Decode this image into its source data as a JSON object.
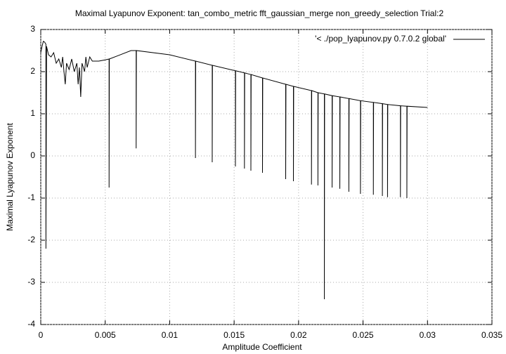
{
  "chart_data": {
    "type": "line",
    "title": "Maximal Lyapunov Exponent: tan_combo_metric fft_gaussian_merge non_greedy_selection Trial:2",
    "xlabel": "Amplitude Coefficient",
    "ylabel": "Maximal Lyapunov Exponent",
    "xlim": [
      0,
      0.035
    ],
    "ylim": [
      -4,
      3
    ],
    "xticks": [
      0,
      0.005,
      0.01,
      0.015,
      0.02,
      0.025,
      0.03,
      0.035
    ],
    "yticks": [
      -4,
      -3,
      -2,
      -1,
      0,
      1,
      2,
      3
    ],
    "grid": true,
    "legend": "top-right",
    "series": [
      {
        "name": "'< ./pop_lyapunov.py 0.7.0.2 global'",
        "color": "#000000",
        "x": [
          0,
          0.0001,
          0.0002,
          0.0003,
          0.0004,
          0.0004,
          0.00045,
          0.0006,
          0.0008,
          0.001,
          0.0012,
          0.0014,
          0.0016,
          0.0017,
          0.0018,
          0.0019,
          0.002,
          0.0022,
          0.0024,
          0.0026,
          0.0028,
          0.0029,
          0.003,
          0.0031,
          0.0032,
          0.0034,
          0.0035,
          0.0036,
          0.0038,
          0.004,
          0.0045,
          0.005,
          0.0053,
          0.0053,
          0.00532,
          0.006,
          0.007,
          0.0074,
          0.0074,
          0.00742,
          0.01,
          0.012,
          0.012,
          0.01202,
          0.0133,
          0.0133,
          0.01332,
          0.0151,
          0.0151,
          0.01512,
          0.0158,
          0.0158,
          0.01582,
          0.0163,
          0.0163,
          0.01632,
          0.0172,
          0.0172,
          0.01722,
          0.019,
          0.019,
          0.01902,
          0.0196,
          0.0196,
          0.01962,
          0.021,
          0.021,
          0.02102,
          0.0215,
          0.0215,
          0.02152,
          0.022,
          0.022,
          0.02202,
          0.0226,
          0.0226,
          0.02262,
          0.0232,
          0.0232,
          0.02322,
          0.0239,
          0.0239,
          0.02392,
          0.0248,
          0.0248,
          0.02482,
          0.0258,
          0.0258,
          0.02582,
          0.0265,
          0.0265,
          0.02652,
          0.0269,
          0.0269,
          0.02692,
          0.0279,
          0.0279,
          0.02792,
          0.0284,
          0.0284,
          0.02842,
          0.03
        ],
        "values": [
          2.45,
          2.6,
          2.72,
          2.7,
          2.65,
          -2.2,
          2.6,
          2.4,
          2.35,
          2.45,
          2.2,
          2.3,
          2.1,
          2.35,
          2.0,
          1.7,
          2.2,
          2.05,
          2.3,
          2.0,
          2.2,
          1.7,
          2.1,
          1.4,
          2.2,
          2.0,
          2.35,
          2.1,
          2.35,
          2.25,
          2.25,
          2.28,
          2.3,
          -0.75,
          2.3,
          2.38,
          2.5,
          2.5,
          0.18,
          2.5,
          2.4,
          2.25,
          -0.05,
          2.25,
          2.15,
          -0.15,
          2.15,
          2.02,
          -0.25,
          2.02,
          1.97,
          -0.3,
          1.97,
          1.93,
          -0.35,
          1.93,
          1.85,
          -0.4,
          1.85,
          1.7,
          -0.55,
          1.7,
          1.65,
          -0.6,
          1.65,
          1.55,
          -0.68,
          1.55,
          1.5,
          -0.7,
          1.5,
          1.47,
          -3.4,
          1.47,
          1.43,
          -0.75,
          1.43,
          1.4,
          -0.78,
          1.4,
          1.36,
          -0.85,
          1.36,
          1.31,
          -0.9,
          1.31,
          1.27,
          -0.92,
          1.27,
          1.24,
          -0.95,
          1.24,
          1.22,
          -0.98,
          1.22,
          1.19,
          -0.98,
          1.19,
          1.18,
          -1.0,
          1.18,
          1.15
        ]
      }
    ]
  }
}
